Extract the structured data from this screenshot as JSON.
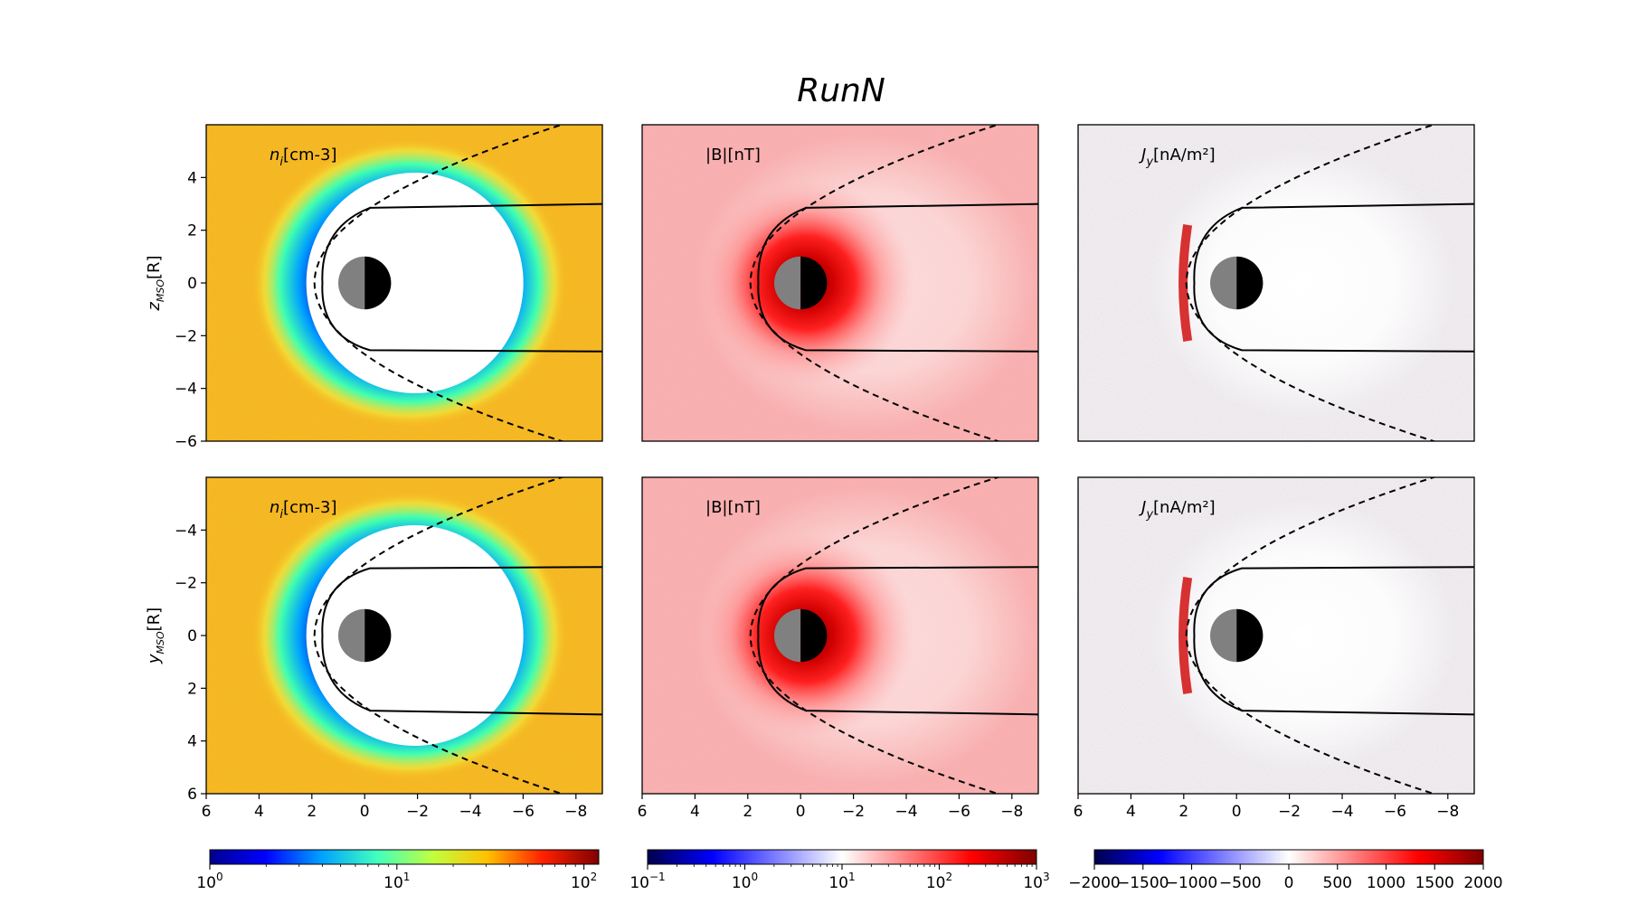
{
  "chart_data": {
    "type": "heatmap",
    "title": "RunN",
    "x_range": [
      6,
      -9
    ],
    "x_ticks": [
      "6",
      "4",
      "2",
      "0",
      "−2",
      "−4",
      "−6",
      "−8"
    ],
    "x_tick_values": [
      6,
      4,
      2,
      0,
      -2,
      -4,
      -6,
      -8
    ],
    "rows": [
      {
        "ylabel_main": "z",
        "ylabel_sub": "MSO",
        "ylabel_unit": "[R]",
        "y_range": [
          -6,
          6
        ],
        "y_ticks": [
          "4",
          "2",
          "0",
          "−2",
          "−4",
          "−6"
        ],
        "y_tick_values": [
          4,
          2,
          0,
          -2,
          -4,
          -6
        ],
        "y_inverted": false
      },
      {
        "ylabel_main": "y",
        "ylabel_sub": "MSO",
        "ylabel_unit": "[R]",
        "y_range": [
          6,
          -6
        ],
        "y_ticks": [
          "−4",
          "−2",
          "0",
          "2",
          "4",
          "6"
        ],
        "y_tick_values": [
          -4,
          -2,
          0,
          2,
          4,
          6
        ],
        "y_inverted": true
      }
    ],
    "panels": [
      {
        "name": "density",
        "label_main": "n",
        "label_sub": "i",
        "label_unit": "[cm-3]",
        "colormap": "jet",
        "scale": "log",
        "background": "#f8b81c"
      },
      {
        "name": "magnetic-field",
        "label_main": "|B|",
        "label_sub": "",
        "label_unit": "[nT]",
        "colormap": "seismic",
        "scale": "log",
        "background": "#fcafaf"
      },
      {
        "name": "current",
        "label_main": "J",
        "label_sub": "y",
        "label_unit": "[nA/m²]",
        "colormap": "seismic",
        "scale": "linear",
        "background": "#f4f0f4"
      }
    ],
    "colorbars": [
      {
        "name": "density-colorbar",
        "scale": "log",
        "range": [
          1,
          120
        ],
        "tick_bases": [
          "10",
          "10"
        ],
        "tick_exps": [
          "0",
          "1"
        ],
        "tick_values": [
          1,
          10
        ],
        "end_tick": {
          "base": "10",
          "exp": "2",
          "value": 100
        }
      },
      {
        "name": "field-colorbar",
        "scale": "log",
        "range": [
          0.1,
          1000
        ],
        "tick_bases": [
          "10",
          "10",
          "10",
          "10",
          "10"
        ],
        "tick_exps": [
          "−1",
          "0",
          "1",
          "2",
          "3"
        ],
        "tick_values": [
          0.1,
          1,
          10,
          100,
          1000
        ]
      },
      {
        "name": "current-colorbar",
        "scale": "linear",
        "range": [
          -2000,
          2000
        ],
        "ticks": [
          "−2000",
          "−1500",
          "−1000",
          "−500",
          "0",
          "500",
          "1000",
          "1500",
          "2000"
        ],
        "tick_values": [
          -2000,
          -1500,
          -1000,
          -500,
          0,
          500,
          1000,
          1500,
          2000
        ]
      }
    ],
    "boundaries": [
      {
        "name": "bow-shock",
        "style": "dashed"
      },
      {
        "name": "magnetopause",
        "style": "solid"
      }
    ],
    "planet": {
      "name": "planet",
      "radius": 1,
      "day_color": "#808080",
      "night_color": "#000000"
    }
  }
}
